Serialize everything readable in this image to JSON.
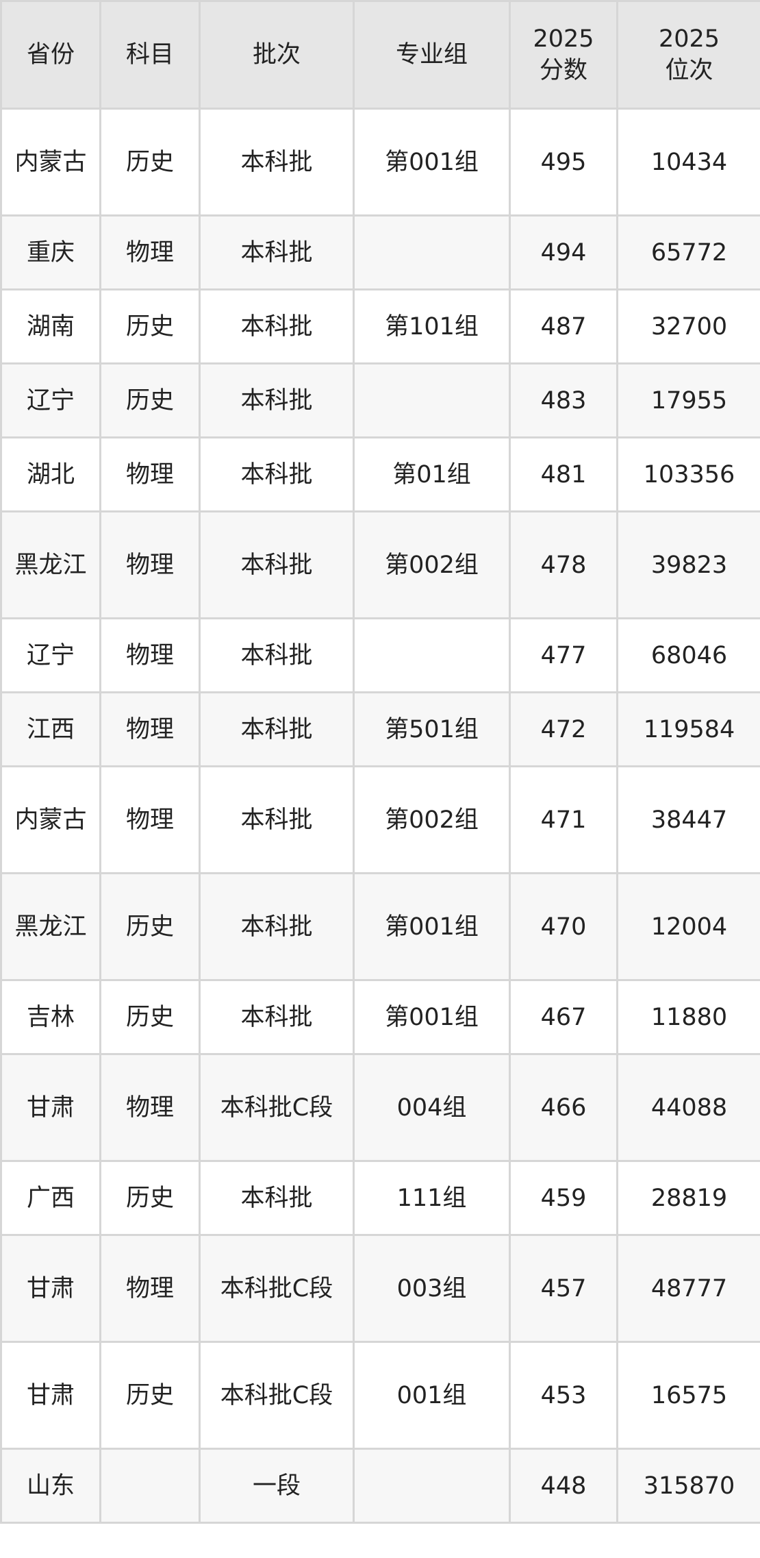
{
  "table": {
    "headers": [
      "省份",
      "科目",
      "批次",
      "专业组",
      "2025分数",
      "2025位次"
    ],
    "rows": [
      {
        "province": "内蒙古",
        "subject": "历史",
        "batch": "本科批",
        "group": "第001组",
        "score": "495",
        "rank": "10434",
        "tall": true
      },
      {
        "province": "重庆",
        "subject": "物理",
        "batch": "本科批",
        "group": "",
        "score": "494",
        "rank": "65772",
        "tall": false
      },
      {
        "province": "湖南",
        "subject": "历史",
        "batch": "本科批",
        "group": "第101组",
        "score": "487",
        "rank": "32700",
        "tall": false
      },
      {
        "province": "辽宁",
        "subject": "历史",
        "batch": "本科批",
        "group": "",
        "score": "483",
        "rank": "17955",
        "tall": false
      },
      {
        "province": "湖北",
        "subject": "物理",
        "batch": "本科批",
        "group": "第01组",
        "score": "481",
        "rank": "103356",
        "tall": false
      },
      {
        "province": "黑龙江",
        "subject": "物理",
        "batch": "本科批",
        "group": "第002组",
        "score": "478",
        "rank": "39823",
        "tall": true
      },
      {
        "province": "辽宁",
        "subject": "物理",
        "batch": "本科批",
        "group": "",
        "score": "477",
        "rank": "68046",
        "tall": false
      },
      {
        "province": "江西",
        "subject": "物理",
        "batch": "本科批",
        "group": "第501组",
        "score": "472",
        "rank": "119584",
        "tall": false
      },
      {
        "province": "内蒙古",
        "subject": "物理",
        "batch": "本科批",
        "group": "第002组",
        "score": "471",
        "rank": "38447",
        "tall": true
      },
      {
        "province": "黑龙江",
        "subject": "历史",
        "batch": "本科批",
        "group": "第001组",
        "score": "470",
        "rank": "12004",
        "tall": true
      },
      {
        "province": "吉林",
        "subject": "历史",
        "batch": "本科批",
        "group": "第001组",
        "score": "467",
        "rank": "11880",
        "tall": false
      },
      {
        "province": "甘肃",
        "subject": "物理",
        "batch": "本科批C段",
        "group": "004组",
        "score": "466",
        "rank": "44088",
        "tall": true
      },
      {
        "province": "广西",
        "subject": "历史",
        "batch": "本科批",
        "group": "111组",
        "score": "459",
        "rank": "28819",
        "tall": false
      },
      {
        "province": "甘肃",
        "subject": "物理",
        "batch": "本科批C段",
        "group": "003组",
        "score": "457",
        "rank": "48777",
        "tall": true
      },
      {
        "province": "甘肃",
        "subject": "历史",
        "batch": "本科批C段",
        "group": "001组",
        "score": "453",
        "rank": "16575",
        "tall": true
      },
      {
        "province": "山东",
        "subject": "",
        "batch": "一段",
        "group": "",
        "score": "448",
        "rank": "315870",
        "tall": false
      }
    ]
  }
}
